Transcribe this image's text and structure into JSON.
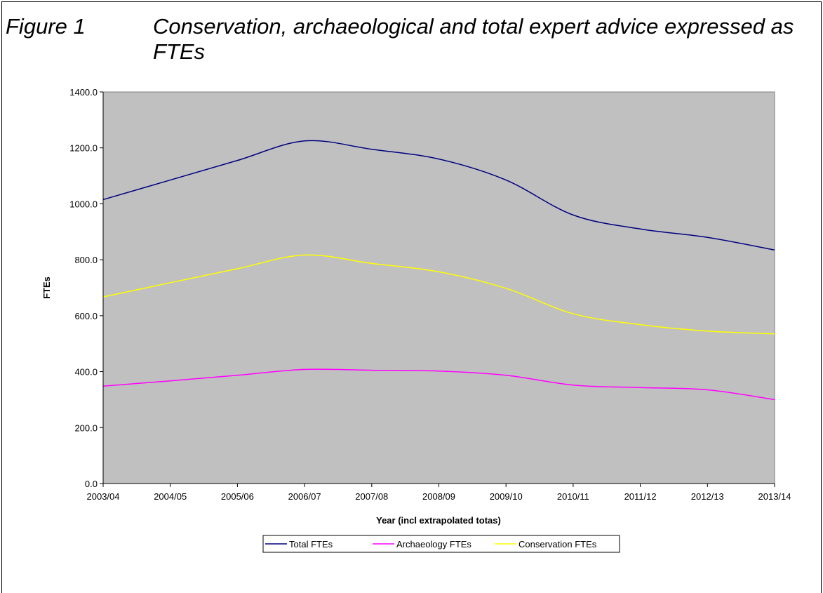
{
  "figure": {
    "label": "Figure 1",
    "title": "Conservation, archaeological and total expert advice expressed as FTEs"
  },
  "chart_data": {
    "type": "line",
    "categories": [
      "2003/04",
      "2004/05",
      "2005/06",
      "2006/07",
      "2007/08",
      "2008/09",
      "2009/10",
      "2010/11",
      "2011/12",
      "2012/13",
      "2013/14"
    ],
    "series": [
      {
        "name": "Total FTEs",
        "color": "#000080",
        "values": [
          1015,
          1085,
          1155,
          1225,
          1195,
          1160,
          1085,
          960,
          910,
          880,
          835
        ]
      },
      {
        "name": "Archaeology FTEs",
        "color": "#FF00FF",
        "values": [
          348,
          367,
          387,
          408,
          405,
          402,
          387,
          352,
          343,
          335,
          300
        ]
      },
      {
        "name": "Conservation FTEs",
        "color": "#FFFF00",
        "values": [
          667,
          718,
          768,
          817,
          787,
          757,
          698,
          607,
          568,
          545,
          535
        ]
      }
    ],
    "xlabel": "Year (incl extrapolated totas)",
    "ylabel": "FTEs",
    "ylim": [
      0,
      1400
    ],
    "yticks": [
      "0.0",
      "200.0",
      "400.0",
      "600.0",
      "800.0",
      "1000.0",
      "1200.0",
      "1400.0"
    ],
    "plot_background": "#C0C0C0",
    "grid": false,
    "legend_position": "bottom"
  }
}
